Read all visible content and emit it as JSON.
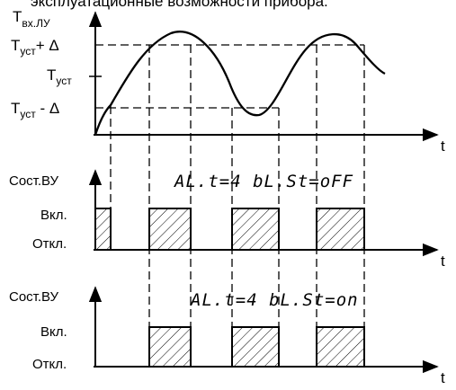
{
  "top_caption": "эксплуатационные возможности прибора.",
  "plot1": {
    "y_axis": {
      "base": "T",
      "sub": "вх.ЛУ"
    },
    "levels": {
      "upper": {
        "base": "T",
        "sub": "уст",
        "suffix": "+ Δ"
      },
      "setpoint": {
        "base": "T",
        "sub": "уст"
      },
      "lower": {
        "base": "T",
        "sub": "уст",
        "suffix": " - Δ"
      }
    },
    "x_axis": "t"
  },
  "plot2": {
    "y_axis": "Сост.ВУ",
    "on_label": "Вкл.",
    "off_label": "Откл.",
    "settings": "AL.t=4  bL.St=oFF",
    "x_axis": "t"
  },
  "plot3": {
    "y_axis": "Сост.ВУ",
    "on_label": "Вкл.",
    "off_label": "Откл.",
    "settings": "AL.t=4  bL.St=on",
    "x_axis": "t"
  }
}
